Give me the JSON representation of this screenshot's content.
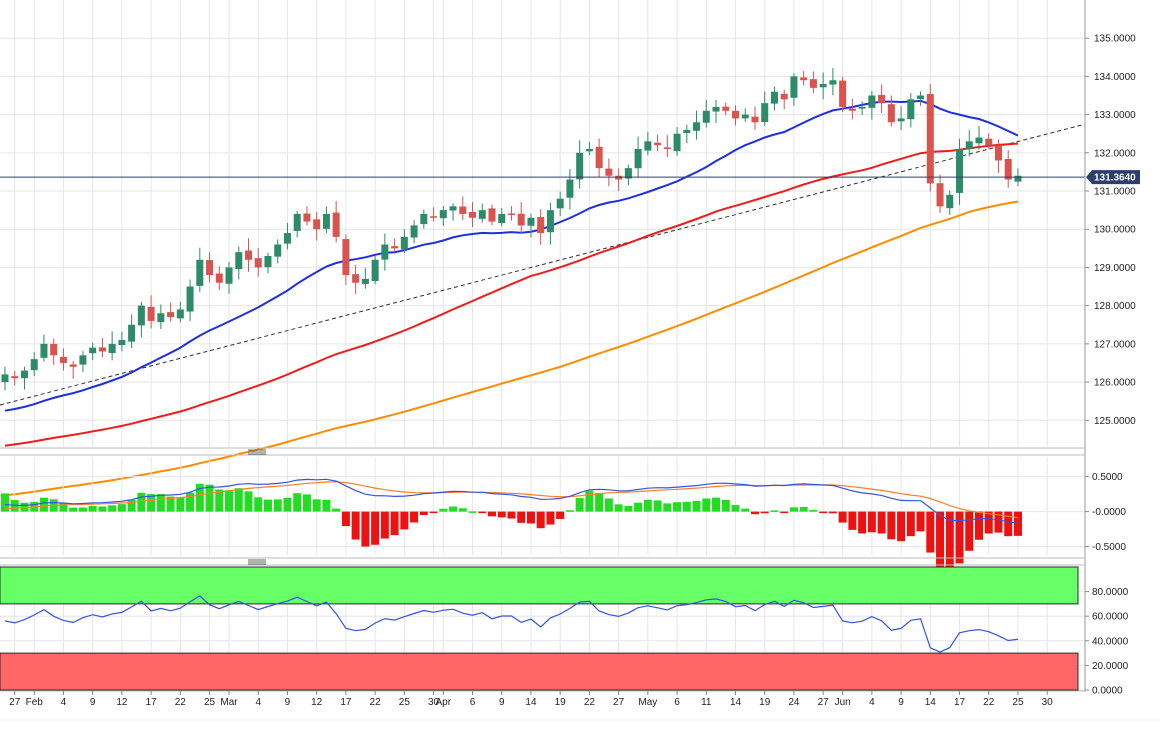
{
  "chart_data": {
    "type": "candlestick",
    "colors": {
      "up": "#2e8b6a",
      "down": "#d9534f",
      "sma_fast": "#1f2fe0",
      "sma_mid": "#ee1c1c",
      "sma_slow": "#ff8c00",
      "trend": "#333333",
      "current": "#2c3e6b",
      "macd_line": "#3355dd",
      "signal_line": "#ff7f2a",
      "hist_pos": "#22dd22",
      "hist_neg": "#ee1111",
      "rsi_line": "#3355dd",
      "overbought": "#66ff66",
      "oversold": "#ff6666"
    },
    "current_price": 131.364,
    "current_price_label": "131.3640",
    "price_axis": {
      "ylim": [
        124.3,
        136.0
      ],
      "ticks": [
        125,
        126,
        127,
        128,
        129,
        130,
        131,
        132,
        133,
        134,
        135
      ],
      "tick_labels": [
        "125.0000",
        "126.0000",
        "127.0000",
        "128.0000",
        "129.0000",
        "130.0000",
        "131.0000",
        "132.0000",
        "133.0000",
        "134.0000",
        "135.0000"
      ]
    },
    "macd_axis": {
      "ylim": [
        -0.62,
        0.78
      ],
      "ticks": [
        0.5,
        0.0,
        -0.5
      ],
      "tick_labels": [
        "0.5000",
        "-0.0000",
        "-0.5000"
      ]
    },
    "rsi_axis": {
      "ylim": [
        0,
        100
      ],
      "ticks": [
        0,
        20,
        40,
        60,
        80
      ],
      "tick_labels": [
        "0.0000",
        "20.0000",
        "40.0000",
        "60.0000",
        "80.0000"
      ],
      "overbought": [
        70,
        100
      ],
      "oversold": [
        0,
        30
      ]
    },
    "x_labels": [
      {
        "i": 1,
        "label": "27"
      },
      {
        "i": 3,
        "label": "Feb"
      },
      {
        "i": 6,
        "label": "4"
      },
      {
        "i": 9,
        "label": "9"
      },
      {
        "i": 12,
        "label": "12"
      },
      {
        "i": 15,
        "label": "17"
      },
      {
        "i": 18,
        "label": "22"
      },
      {
        "i": 21,
        "label": "25"
      },
      {
        "i": 23,
        "label": "Mar"
      },
      {
        "i": 26,
        "label": "4"
      },
      {
        "i": 29,
        "label": "9"
      },
      {
        "i": 32,
        "label": "12"
      },
      {
        "i": 35,
        "label": "17"
      },
      {
        "i": 38,
        "label": "22"
      },
      {
        "i": 41,
        "label": "25"
      },
      {
        "i": 44,
        "label": "30"
      },
      {
        "i": 45,
        "label": "Apr"
      },
      {
        "i": 48,
        "label": "6"
      },
      {
        "i": 51,
        "label": "9"
      },
      {
        "i": 54,
        "label": "14"
      },
      {
        "i": 57,
        "label": "19"
      },
      {
        "i": 60,
        "label": "22"
      },
      {
        "i": 63,
        "label": "27"
      },
      {
        "i": 66,
        "label": "May"
      },
      {
        "i": 69,
        "label": "6"
      },
      {
        "i": 72,
        "label": "11"
      },
      {
        "i": 75,
        "label": "14"
      },
      {
        "i": 78,
        "label": "19"
      },
      {
        "i": 81,
        "label": "24"
      },
      {
        "i": 84,
        "label": "27"
      },
      {
        "i": 86,
        "label": "Jun"
      },
      {
        "i": 89,
        "label": "4"
      },
      {
        "i": 92,
        "label": "9"
      },
      {
        "i": 95,
        "label": "14"
      },
      {
        "i": 98,
        "label": "17"
      },
      {
        "i": 101,
        "label": "22"
      },
      {
        "i": 104,
        "label": "25"
      },
      {
        "i": 107,
        "label": "30"
      }
    ],
    "close": [
      126.2,
      126.1,
      126.3,
      126.6,
      127.0,
      126.7,
      126.5,
      126.4,
      126.7,
      126.9,
      126.8,
      127.0,
      127.1,
      127.5,
      128.0,
      127.6,
      127.8,
      127.7,
      127.9,
      128.5,
      129.2,
      128.8,
      128.6,
      129.0,
      129.4,
      129.2,
      129.0,
      129.3,
      129.6,
      129.9,
      130.4,
      130.2,
      130.0,
      130.4,
      129.8,
      128.8,
      128.6,
      128.7,
      129.2,
      129.6,
      129.5,
      129.8,
      130.1,
      130.4,
      130.3,
      130.5,
      130.6,
      130.4,
      130.3,
      130.5,
      130.2,
      130.4,
      130.4,
      130.1,
      130.3,
      129.9,
      130.5,
      130.8,
      131.3,
      132.0,
      132.1,
      131.6,
      131.4,
      131.3,
      131.6,
      132.1,
      132.3,
      132.2,
      132.1,
      132.5,
      132.6,
      132.8,
      133.1,
      133.2,
      133.1,
      132.9,
      133.0,
      132.8,
      133.3,
      133.6,
      133.4,
      134.0,
      133.9,
      133.7,
      133.8,
      133.9,
      133.2,
      133.1,
      133.2,
      133.5,
      133.3,
      132.8,
      132.9,
      133.4,
      133.5,
      131.2,
      130.6,
      130.9,
      132.1,
      132.3,
      132.4,
      132.2,
      131.8,
      131.3,
      131.4
    ]
  }
}
